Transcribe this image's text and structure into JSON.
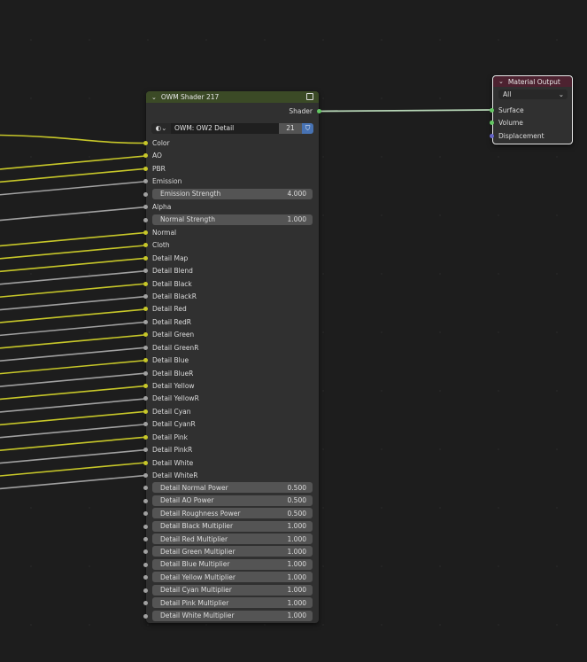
{
  "colors": {
    "yellow": "#c7c729",
    "grey": "#a1a1a1",
    "green": "#63c763",
    "purple": "#6363c7",
    "shader_header": "#3b4a26",
    "output_header": "#4d2230"
  },
  "shader_node": {
    "title": "OWM Shader 217",
    "output_label": "Shader",
    "group_name": "OWM: OW2 Detail",
    "user_count": "21",
    "inputs": [
      {
        "label": "Color",
        "socket": "yellow",
        "connected": true
      },
      {
        "label": "AO",
        "socket": "yellow",
        "connected": true
      },
      {
        "label": "PBR",
        "socket": "yellow",
        "connected": true
      },
      {
        "label": "Emission",
        "socket": "grey",
        "connected": true
      },
      {
        "label": "Emission Strength",
        "socket": "grey",
        "value": "4.000"
      },
      {
        "label": "Alpha",
        "socket": "grey",
        "connected": true
      },
      {
        "label": "Normal Strength",
        "socket": "grey",
        "value": "1.000"
      },
      {
        "label": "Normal",
        "socket": "yellow",
        "connected": true
      },
      {
        "label": "Cloth",
        "socket": "yellow",
        "connected": true
      },
      {
        "label": "Detail Map",
        "socket": "yellow",
        "connected": true
      },
      {
        "label": "Detail Blend",
        "socket": "grey",
        "connected": true
      },
      {
        "label": "Detail Black",
        "socket": "yellow",
        "connected": true
      },
      {
        "label": "Detail BlackR",
        "socket": "grey",
        "connected": true
      },
      {
        "label": "Detail Red",
        "socket": "yellow",
        "connected": true
      },
      {
        "label": "Detail RedR",
        "socket": "grey",
        "connected": true
      },
      {
        "label": "Detail Green",
        "socket": "yellow",
        "connected": true
      },
      {
        "label": "Detail GreenR",
        "socket": "grey",
        "connected": true
      },
      {
        "label": "Detail Blue",
        "socket": "yellow",
        "connected": true
      },
      {
        "label": "Detail BlueR",
        "socket": "grey",
        "connected": true
      },
      {
        "label": "Detail Yellow",
        "socket": "yellow",
        "connected": true
      },
      {
        "label": "Detail YellowR",
        "socket": "grey",
        "connected": true
      },
      {
        "label": "Detail Cyan",
        "socket": "yellow",
        "connected": true
      },
      {
        "label": "Detail CyanR",
        "socket": "grey",
        "connected": true
      },
      {
        "label": "Detail Pink",
        "socket": "yellow",
        "connected": true
      },
      {
        "label": "Detail PinkR",
        "socket": "grey",
        "connected": true
      },
      {
        "label": "Detail White",
        "socket": "yellow",
        "connected": true
      },
      {
        "label": "Detail WhiteR",
        "socket": "grey",
        "connected": true
      },
      {
        "label": "Detail Normal Power",
        "socket": "grey",
        "value": "0.500"
      },
      {
        "label": "Detail AO Power",
        "socket": "grey",
        "value": "0.500"
      },
      {
        "label": "Detail Roughness Power",
        "socket": "grey",
        "value": "0.500"
      },
      {
        "label": "Detail Black Multiplier",
        "socket": "grey",
        "value": "1.000"
      },
      {
        "label": "Detail Red Multiplier",
        "socket": "grey",
        "value": "1.000"
      },
      {
        "label": "Detail Green Multiplier",
        "socket": "grey",
        "value": "1.000"
      },
      {
        "label": "Detail Blue Multiplier",
        "socket": "grey",
        "value": "1.000"
      },
      {
        "label": "Detail Yellow Multiplier",
        "socket": "grey",
        "value": "1.000"
      },
      {
        "label": "Detail Cyan Multiplier",
        "socket": "grey",
        "value": "1.000"
      },
      {
        "label": "Detail Pink Multiplier",
        "socket": "grey",
        "value": "1.000"
      },
      {
        "label": "Detail White Multiplier",
        "socket": "grey",
        "value": "1.000"
      }
    ]
  },
  "output_node": {
    "title": "Material Output",
    "target": "All",
    "inputs": [
      {
        "label": "Surface",
        "socket": "green"
      },
      {
        "label": "Volume",
        "socket": "green"
      },
      {
        "label": "Displacement",
        "socket": "purple"
      }
    ]
  }
}
